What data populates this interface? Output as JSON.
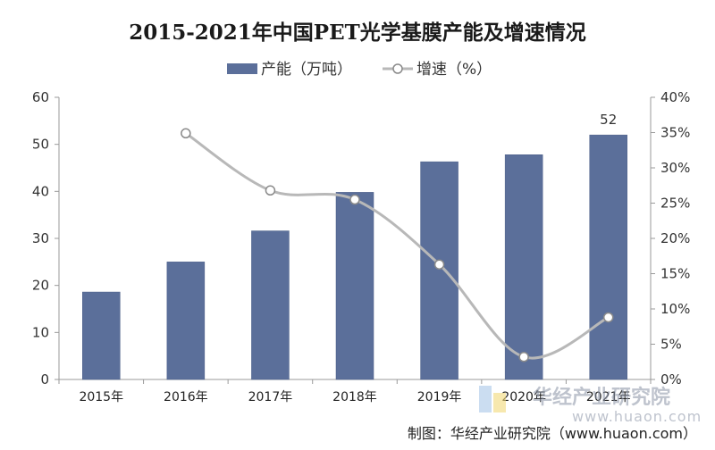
{
  "title": "2015-2021年中国PET光学基膜产能及增速情况",
  "legend": {
    "bar_label": "产能（万吨）",
    "line_label": "增速（%）"
  },
  "credit": "制图：华经产业研究院（www.huaon.com）",
  "watermark": {
    "text": "华经产业研究院",
    "url": "www.huaon.com"
  },
  "colors": {
    "bar": "#5b6f9a",
    "bar_edge": "#4a5d86",
    "line": "#b8b8b8",
    "marker_fill": "#ffffff",
    "marker_edge": "#8a8a8a",
    "axis": "#9a9a9a"
  },
  "chart_data": {
    "type": "bar",
    "categories": [
      "2015年",
      "2016年",
      "2017年",
      "2018年",
      "2019年",
      "2020年",
      "2021年"
    ],
    "series": [
      {
        "name": "产能（万吨）",
        "type": "bar",
        "axis": "left",
        "values": [
          18.6,
          25.0,
          31.6,
          39.8,
          46.3,
          47.8,
          52
        ]
      },
      {
        "name": "增速（%）",
        "type": "line",
        "axis": "right",
        "values": [
          null,
          34.9,
          26.8,
          25.5,
          16.3,
          3.2,
          8.8
        ]
      }
    ],
    "y_left": {
      "lim": [
        0,
        60
      ],
      "ticks": [
        "0",
        "10",
        "20",
        "30",
        "40",
        "50",
        "60"
      ]
    },
    "y_right": {
      "lim": [
        0,
        40
      ],
      "ticks": [
        "0%",
        "5%",
        "10%",
        "15%",
        "20%",
        "25%",
        "30%",
        "35%",
        "40%"
      ]
    },
    "data_labels": [
      {
        "category": "2021年",
        "series": "产能（万吨）",
        "text": "52"
      }
    ],
    "legend_position": "top-center",
    "grid": false
  }
}
